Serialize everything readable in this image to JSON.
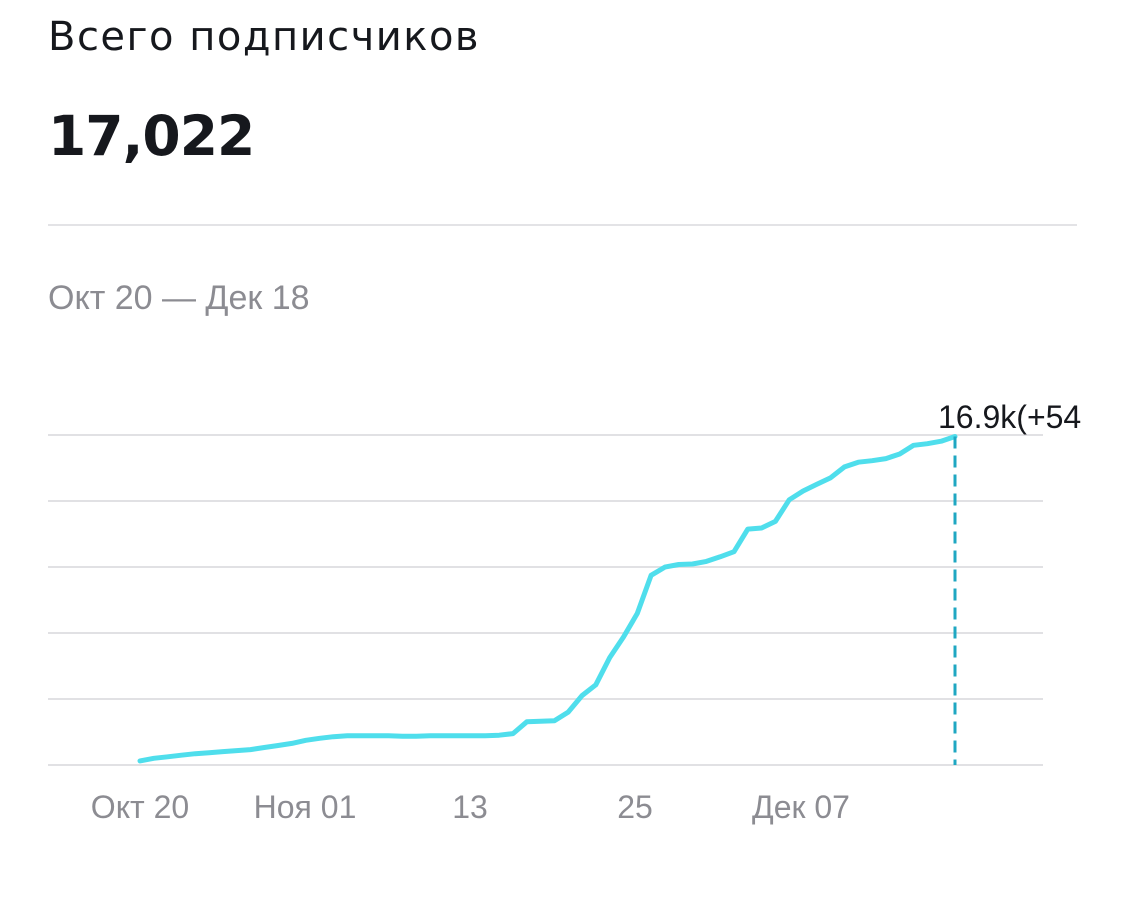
{
  "header": {
    "title": "Всего подписчиков",
    "total": "17,022"
  },
  "date_range": "Окт 20 — Дек 18",
  "chart_data": {
    "type": "line",
    "x_tick_labels": [
      "Окт 20",
      "Ноя 01",
      "13",
      "25",
      "Дек 07"
    ],
    "x": [
      "Окт 20",
      "Окт 21",
      "Окт 22",
      "Окт 23",
      "Окт 24",
      "Окт 25",
      "Окт 26",
      "Окт 27",
      "Окт 28",
      "Окт 29",
      "Окт 30",
      "Окт 31",
      "Ноя 01",
      "Ноя 02",
      "Ноя 03",
      "Ноя 04",
      "Ноя 05",
      "Ноя 06",
      "Ноя 07",
      "Ноя 08",
      "Ноя 09",
      "Ноя 10",
      "Ноя 11",
      "Ноя 12",
      "Ноя 13",
      "Ноя 14",
      "Ноя 15",
      "Ноя 16",
      "Ноя 17",
      "Ноя 18",
      "Ноя 19",
      "Ноя 20",
      "Ноя 21",
      "Ноя 22",
      "Ноя 23",
      "Ноя 24",
      "Ноя 25",
      "Ноя 26",
      "Ноя 27",
      "Ноя 28",
      "Ноя 29",
      "Ноя 30",
      "Дек 01",
      "Дек 02",
      "Дек 03",
      "Дек 04",
      "Дек 05",
      "Дек 06",
      "Дек 07",
      "Дек 08",
      "Дек 09",
      "Дек 10",
      "Дек 11",
      "Дек 12",
      "Дек 13",
      "Дек 14",
      "Дек 15",
      "Дек 16",
      "Дек 17",
      "Дек 18"
    ],
    "values": [
      0.05,
      0.1,
      0.13,
      0.16,
      0.19,
      0.21,
      0.23,
      0.25,
      0.27,
      0.31,
      0.35,
      0.39,
      0.45,
      0.49,
      0.52,
      0.54,
      0.54,
      0.54,
      0.54,
      0.53,
      0.53,
      0.54,
      0.54,
      0.54,
      0.54,
      0.54,
      0.55,
      0.58,
      0.81,
      0.82,
      0.83,
      1.0,
      1.32,
      1.53,
      2.06,
      2.46,
      2.92,
      3.66,
      3.82,
      3.87,
      3.88,
      3.93,
      4.02,
      4.12,
      4.56,
      4.58,
      4.71,
      5.13,
      5.3,
      5.43,
      5.56,
      5.77,
      5.86,
      5.89,
      5.93,
      6.02,
      6.19,
      6.22,
      6.27,
      6.36
    ],
    "tooltip_label": "16.9k(+54",
    "grid": true,
    "line_color": "#4fdeec",
    "ylim": [
      -0.03,
      6.39
    ]
  },
  "colors": {
    "line": "#4fdeec",
    "marker": "#1fa7c2",
    "grid": "#e1e1e4",
    "text_dark": "#16181d",
    "text_muted": "#8c8c92"
  }
}
